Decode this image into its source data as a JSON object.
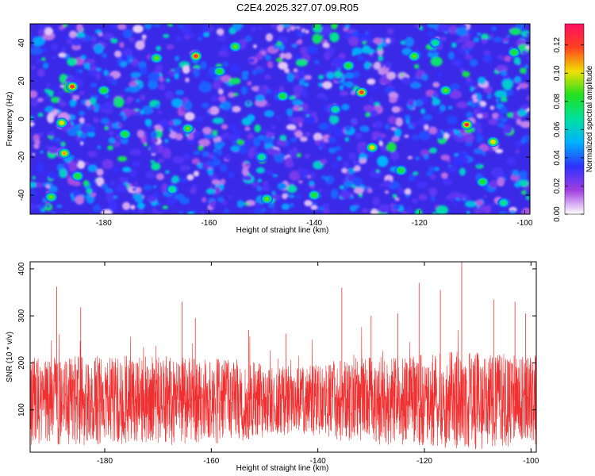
{
  "title": "C2E4.2025.327.07.09.R05",
  "chart_data": [
    {
      "type": "heatmap",
      "title": "C2E4.2025.327.07.09.R05",
      "xlabel": "Height of straight line (km)",
      "ylabel": "Frequency (Hz)",
      "xlim": [
        -194,
        -99
      ],
      "ylim": [
        -50,
        50
      ],
      "xticks": [
        -180,
        -160,
        -140,
        -120,
        -100
      ],
      "yticks": [
        -40,
        -20,
        0,
        20,
        40
      ],
      "colorbar": {
        "label": "Normalized spectral amplitude",
        "range": [
          0,
          0.135
        ],
        "ticks": [
          0.0,
          0.02,
          0.04,
          0.06,
          0.08,
          0.1,
          0.12
        ],
        "colors": [
          "#ffffff",
          "#a040e0",
          "#3030ff",
          "#00b0ff",
          "#00e0a0",
          "#20e020",
          "#f0e000",
          "#ff4020",
          "#ff1060"
        ]
      },
      "peaks": [
        {
          "x": -186,
          "y": 17,
          "v": 0.12
        },
        {
          "x": -162.5,
          "y": 33,
          "v": 0.12
        },
        {
          "x": -131,
          "y": 14,
          "v": 0.12
        },
        {
          "x": -111,
          "y": -3,
          "v": 0.13
        },
        {
          "x": -188,
          "y": -2,
          "v": 0.1
        },
        {
          "x": -187.5,
          "y": -18,
          "v": 0.11
        },
        {
          "x": -129,
          "y": -15,
          "v": 0.1
        },
        {
          "x": -106,
          "y": -12,
          "v": 0.1
        },
        {
          "x": -190,
          "y": -41,
          "v": 0.09
        },
        {
          "x": -164,
          "y": -5,
          "v": 0.09
        },
        {
          "x": -170,
          "y": 32,
          "v": 0.09
        },
        {
          "x": -155,
          "y": 38,
          "v": 0.09
        },
        {
          "x": -121,
          "y": 33,
          "v": 0.09
        },
        {
          "x": -115,
          "y": 15,
          "v": 0.09
        },
        {
          "x": -149,
          "y": -42,
          "v": 0.09
        },
        {
          "x": -133.5,
          "y": 28,
          "v": 0.08
        },
        {
          "x": -176,
          "y": -8,
          "v": 0.08
        },
        {
          "x": -140,
          "y": -40,
          "v": 0.08
        },
        {
          "x": -123.5,
          "y": -27,
          "v": 0.08
        },
        {
          "x": -146,
          "y": 12,
          "v": 0.08
        },
        {
          "x": -185,
          "y": -30,
          "v": 0.08
        },
        {
          "x": -102,
          "y": 35,
          "v": 0.08
        },
        {
          "x": -158,
          "y": 25,
          "v": 0.08
        },
        {
          "x": -180,
          "y": 15,
          "v": 0.08
        },
        {
          "x": -108,
          "y": -33,
          "v": 0.08
        },
        {
          "x": -150,
          "y": -20,
          "v": 0.07
        },
        {
          "x": -136,
          "y": 5,
          "v": 0.07
        },
        {
          "x": -117,
          "y": 40,
          "v": 0.07
        },
        {
          "x": -104,
          "y": -44,
          "v": 0.07
        },
        {
          "x": -167,
          "y": -37,
          "v": 0.07
        }
      ]
    },
    {
      "type": "line",
      "xlabel": "Height of straight line (km)",
      "ylabel": "SNR (10 * v/v)",
      "xlim": [
        -194,
        -99
      ],
      "ylim": [
        10,
        415
      ],
      "xticks": [
        -180,
        -160,
        -140,
        -120,
        -100
      ],
      "yticks": [
        100,
        200,
        300,
        400
      ],
      "series": [
        {
          "name": "SNR",
          "color": "#f03030",
          "baseline": 120,
          "typical_range": [
            60,
            250
          ],
          "max": 415
        }
      ],
      "spikes": [
        {
          "x": -189,
          "y": 362
        },
        {
          "x": -184.5,
          "y": 318
        },
        {
          "x": -165.5,
          "y": 330
        },
        {
          "x": -163,
          "y": 295
        },
        {
          "x": -135.5,
          "y": 360
        },
        {
          "x": -130,
          "y": 300
        },
        {
          "x": -121,
          "y": 370
        },
        {
          "x": -117,
          "y": 355
        },
        {
          "x": -113,
          "y": 415
        },
        {
          "x": -103,
          "y": 330
        },
        {
          "x": -101,
          "y": 305
        },
        {
          "x": -153,
          "y": 270
        },
        {
          "x": -146,
          "y": 262
        },
        {
          "x": -125,
          "y": 305
        },
        {
          "x": -107,
          "y": 335
        }
      ]
    }
  ]
}
